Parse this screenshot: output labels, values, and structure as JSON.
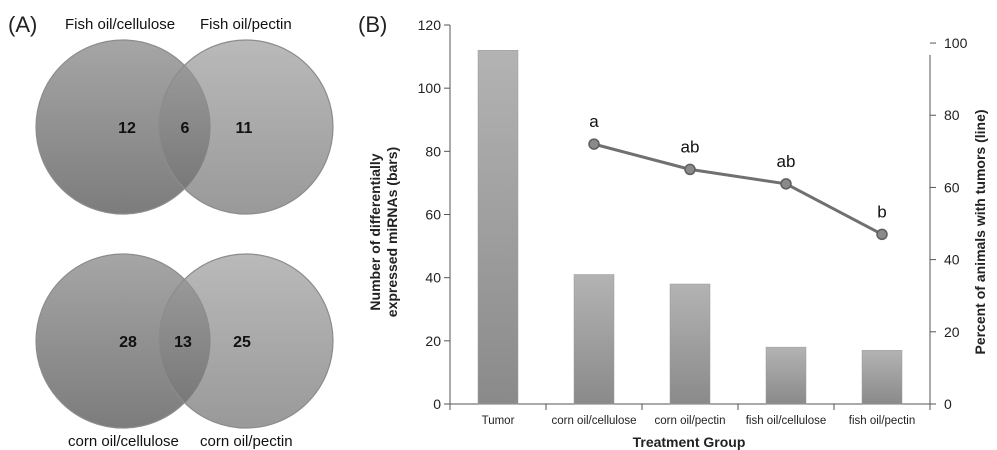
{
  "panels": {
    "a_label": "(A)",
    "b_label": "(B)"
  },
  "venn": [
    {
      "left_label": "Fish oil/cellulose",
      "right_label": "Fish oil/pectin",
      "left_only": "12",
      "overlap": "6",
      "right_only": "11",
      "fill_color": "#8a8a8a"
    },
    {
      "left_label": "corn oil/cellulose",
      "right_label": "corn oil/pectin",
      "left_only": "28",
      "overlap": "13",
      "right_only": "25",
      "fill_color": "#8a8a8a"
    }
  ],
  "chart_data": {
    "type": "bar",
    "categories": [
      "Tumor",
      "corn oil/cellulose",
      "corn oil/pectin",
      "fish oil/cellulose",
      "fish oil/pectin"
    ],
    "series": [
      {
        "kind": "bar",
        "axis": "left",
        "values": [
          112,
          41,
          38,
          18,
          17
        ],
        "color": "#9a9a9a"
      },
      {
        "kind": "line",
        "axis": "right",
        "values": [
          null,
          72,
          65,
          61,
          47
        ],
        "labels": [
          "",
          "a",
          "ab",
          "ab",
          "b"
        ],
        "color": "#707070"
      }
    ],
    "xlabel": "Treatment Group",
    "ylabel": "Number of differentially expressed miRNAs (bars)",
    "ylabel_lines": [
      "Number of differentially",
      "expressed miRNAs (bars)"
    ],
    "y2label": "Percent of animals with tumors (line)",
    "ylim": [
      0,
      120
    ],
    "yticks": [
      0,
      20,
      40,
      60,
      80,
      100,
      120
    ],
    "y2lim": [
      0,
      105
    ],
    "y2ticks": [
      0,
      20,
      40,
      60,
      80,
      100
    ],
    "grid": false,
    "legend": "none"
  }
}
